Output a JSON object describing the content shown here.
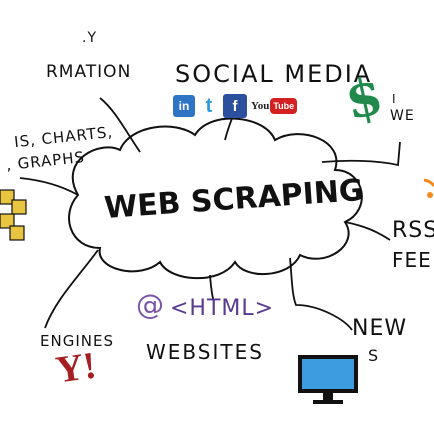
{
  "labels": {
    "information": "RMATION",
    "information_top": ".Y",
    "social_media": "SOCIAL MEDIA",
    "lists_charts": "IS, CHARTS,",
    "graphs": ", GRAPHS",
    "web_scraping": "WEB SCRAPING",
    "rss": "RSS",
    "feeds": "FEE",
    "engines": "ENGINES",
    "websites": "WEBSITES",
    "html": "<HTML>",
    "at_symbol": "@",
    "news": "NEW",
    "news_sub": "S",
    "right_top": "I",
    "right_we": "WE"
  },
  "social_icons": {
    "linkedin": "in",
    "twitter": "t",
    "facebook": "f",
    "youtube_you": "You",
    "youtube_tube": "Tube"
  },
  "dollar_sign": "$",
  "yahoo_logo": "Y!",
  "colors": {
    "linkedin": "#2f74c4",
    "twitter": "#2e9be0",
    "facebook": "#2c4f9e",
    "youtube": "#d32020",
    "dollar": "#1f8a4c",
    "yahoo": "#a51e22",
    "html": "#5a3a8e",
    "monitor_screen": "#3d9be0",
    "sticky_notes": "#e8c440"
  }
}
